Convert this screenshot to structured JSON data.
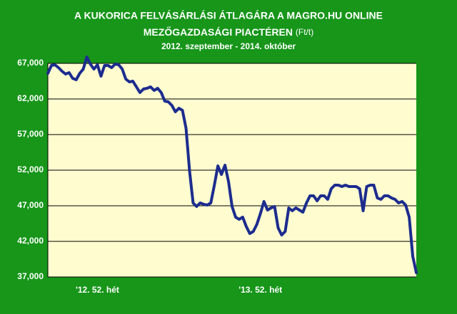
{
  "chart_data": {
    "type": "line",
    "title": "A KUKORICA FELVÁSÁRLÁSI ÁTLAGÁRA A MAGRO.HU ONLINE",
    "title_line2": "MEZŐGAZDASÁGI PIACTÉREN",
    "unit": "(Ft/t)",
    "subtitle_parts": [
      "2012. szeptember - ",
      "2014",
      ". október"
    ],
    "categories": [
      null,
      null,
      null,
      null,
      null,
      null,
      null,
      null,
      null,
      null,
      null,
      null,
      null,
      null,
      "'12. 52. hét",
      null,
      null,
      null,
      null,
      null,
      null,
      null,
      null,
      null,
      null,
      null,
      null,
      null,
      null,
      null,
      null,
      null,
      null,
      null,
      null,
      null,
      null,
      null,
      null,
      null,
      null,
      null,
      null,
      null,
      null,
      null,
      null,
      null,
      null,
      null,
      null,
      null,
      null,
      null,
      null,
      null,
      null,
      null,
      null,
      null,
      "'13. 52. hét",
      null,
      null,
      null,
      null,
      null,
      null,
      null,
      null,
      null,
      null,
      null,
      null,
      null,
      null,
      null,
      null,
      null,
      null,
      null,
      null,
      null,
      null,
      null,
      null,
      null,
      null,
      null,
      null,
      null,
      null,
      null,
      null,
      null,
      null,
      null,
      null,
      null,
      null,
      null,
      null,
      null,
      null,
      null,
      null
    ],
    "values": [
      65600,
      66700,
      66800,
      66400,
      65900,
      65500,
      65700,
      64900,
      64700,
      65600,
      66200,
      67900,
      66900,
      66200,
      66800,
      65200,
      66700,
      66700,
      66400,
      66900,
      66800,
      66200,
      64800,
      64400,
      64500,
      63700,
      62900,
      63400,
      63500,
      63700,
      63200,
      63500,
      62900,
      61700,
      61600,
      61100,
      60200,
      60700,
      60400,
      57900,
      51900,
      47400,
      46900,
      47400,
      47200,
      47100,
      47400,
      49900,
      52600,
      51400,
      52700,
      50400,
      46900,
      45400,
      45100,
      45400,
      44100,
      43100,
      43400,
      44400,
      45900,
      47600,
      46400,
      46700,
      46900,
      43900,
      42900,
      43400,
      46700,
      46300,
      46700,
      46400,
      46100,
      47400,
      48400,
      48400,
      47700,
      48400,
      48400,
      47900,
      49400,
      49900,
      49900,
      49700,
      49900,
      49700,
      49700,
      49700,
      49400,
      46300,
      49700,
      49900,
      49900,
      48100,
      47900,
      48400,
      48400,
      48100,
      47900,
      47400,
      47600,
      47100,
      45400,
      39900,
      37600
    ],
    "color": "#1c2c8e",
    "ylim": [
      37000,
      67000
    ],
    "yticks": [
      {
        "value": 37000,
        "label": "37,000"
      },
      {
        "value": 42000,
        "label": "42,000"
      },
      {
        "value": 47000,
        "label": "47,000"
      },
      {
        "value": 52000,
        "label": "52,000"
      },
      {
        "value": 57000,
        "label": "57,000"
      },
      {
        "value": 62000,
        "label": "62,000"
      },
      {
        "value": 67000,
        "label": "67,000"
      }
    ],
    "grid": true
  }
}
